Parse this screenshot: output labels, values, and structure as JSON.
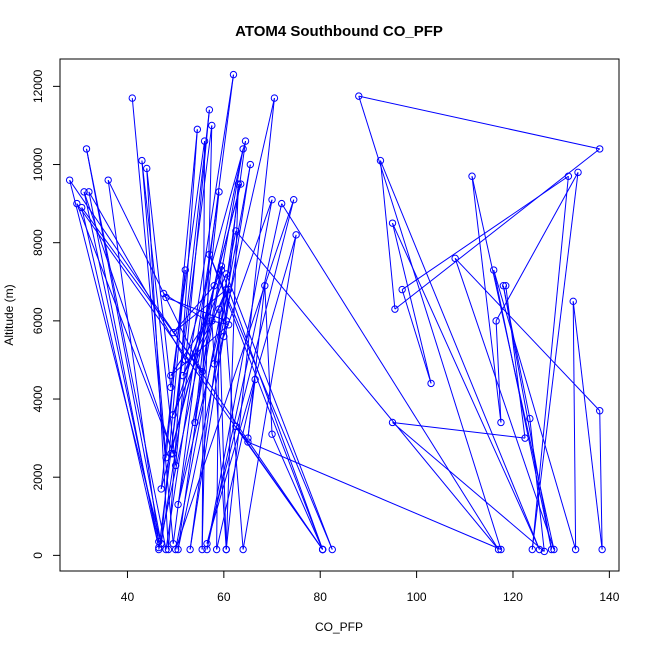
{
  "chart_data": {
    "type": "line",
    "title": "ATOM4 Southbound CO_PFP",
    "xlabel": "CO_PFP",
    "ylabel": "Altitude (m)",
    "xlim": [
      26,
      142
    ],
    "ylim": [
      -400,
      12700
    ],
    "xticks": [
      40,
      60,
      80,
      100,
      120,
      140
    ],
    "yticks": [
      0,
      2000,
      4000,
      6000,
      8000,
      10000,
      12000
    ],
    "grid": false,
    "legend": "none",
    "series": [
      {
        "color": "#0000ff",
        "marker": "open-circle",
        "points": [
          [
            41,
            11700
          ],
          [
            49.5,
            300
          ],
          [
            62,
            12300
          ],
          [
            47,
            300
          ],
          [
            52,
            7300
          ],
          [
            47,
            1700
          ],
          [
            63.5,
            9500
          ],
          [
            49,
            2600
          ],
          [
            57,
            11400
          ],
          [
            50,
            2300
          ],
          [
            43,
            10100
          ],
          [
            48,
            2500
          ],
          [
            54.5,
            10900
          ],
          [
            48.5,
            150
          ],
          [
            44,
            9900
          ],
          [
            49,
            4300
          ],
          [
            56,
            10600
          ],
          [
            55.5,
            150
          ],
          [
            57.5,
            11000
          ],
          [
            46.5,
            150
          ],
          [
            64,
            10400
          ],
          [
            54,
            3400
          ],
          [
            59,
            9300
          ],
          [
            48,
            150
          ],
          [
            31.5,
            10400
          ],
          [
            47,
            300
          ],
          [
            28,
            9600
          ],
          [
            80.5,
            150
          ],
          [
            29.5,
            9000
          ],
          [
            49.5,
            2600
          ],
          [
            31,
            9300
          ],
          [
            46.5,
            350
          ],
          [
            36,
            9600
          ],
          [
            55.5,
            4700
          ],
          [
            30.5,
            8900
          ],
          [
            46.5,
            200
          ],
          [
            32,
            9300
          ],
          [
            52,
            5000
          ],
          [
            64.5,
            10600
          ],
          [
            53,
            150
          ],
          [
            65.5,
            10000
          ],
          [
            58,
            4900
          ],
          [
            70.5,
            11700
          ],
          [
            60.5,
            150
          ],
          [
            63,
            9500
          ],
          [
            60,
            5600
          ],
          [
            70,
            9100
          ],
          [
            56.5,
            150
          ],
          [
            72,
            9000
          ],
          [
            117,
            150
          ],
          [
            62.5,
            8300
          ],
          [
            50,
            150
          ],
          [
            74.5,
            9100
          ],
          [
            56.5,
            300
          ],
          [
            75,
            8200
          ],
          [
            64,
            150
          ],
          [
            59.5,
            7300
          ],
          [
            80.5,
            150
          ],
          [
            57,
            7700
          ],
          [
            82.5,
            150
          ],
          [
            60.5,
            7200
          ],
          [
            51.5,
            4600
          ],
          [
            61,
            6800
          ],
          [
            50.5,
            1300
          ],
          [
            59.5,
            7400
          ],
          [
            49.5,
            3600
          ],
          [
            60.5,
            6800
          ],
          [
            49.5,
            5700
          ],
          [
            58,
            6900
          ],
          [
            50.5,
            150
          ],
          [
            60.5,
            6000
          ],
          [
            48,
            6600
          ],
          [
            47.5,
            6700
          ],
          [
            56.5,
            6000
          ],
          [
            49,
            4600
          ],
          [
            61,
            5900
          ],
          [
            57.5,
            6000
          ],
          [
            60.5,
            150
          ],
          [
            59,
            6300
          ],
          [
            58.5,
            150
          ],
          [
            66.5,
            4500
          ],
          [
            65,
            3000
          ],
          [
            68.5,
            6900
          ],
          [
            70,
            3100
          ],
          [
            80.5,
            150
          ],
          [
            62.5,
            3300
          ],
          [
            65,
            2900
          ],
          [
            117.5,
            150
          ],
          [
            88,
            11750
          ],
          [
            138,
            10400
          ],
          [
            95.5,
            6300
          ],
          [
            92.5,
            10100
          ],
          [
            125.5,
            150
          ],
          [
            95,
            8500
          ],
          [
            103,
            4400
          ],
          [
            97,
            6800
          ],
          [
            131.5,
            9700
          ],
          [
            124,
            150
          ],
          [
            133.5,
            9800
          ],
          [
            116.5,
            6000
          ],
          [
            117.5,
            3400
          ],
          [
            111.5,
            9700
          ],
          [
            128.5,
            150
          ],
          [
            108,
            7600
          ],
          [
            138,
            3700
          ],
          [
            138.5,
            150
          ],
          [
            132.5,
            6500
          ],
          [
            133,
            150
          ],
          [
            116,
            7300
          ],
          [
            128,
            150
          ],
          [
            118,
            6900
          ],
          [
            123.5,
            3500
          ],
          [
            126.5,
            100
          ],
          [
            95,
            3400
          ],
          [
            122.5,
            3000
          ],
          [
            118.5,
            6900
          ]
        ]
      }
    ]
  }
}
